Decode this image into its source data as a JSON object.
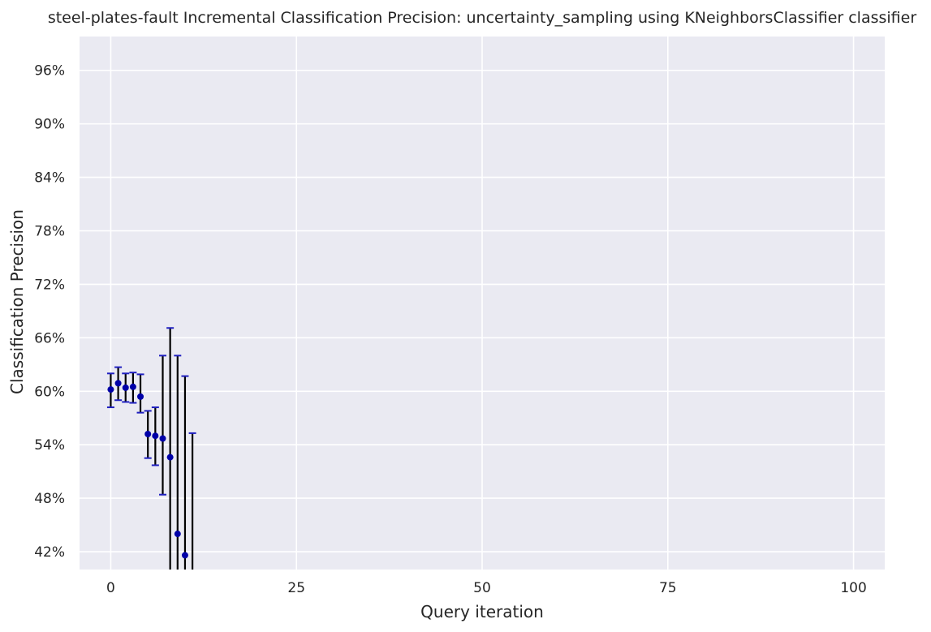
{
  "chart_data": {
    "type": "scatter",
    "title": "steel-plates-fault Incremental Classification Precision: uncertainty_sampling using KNeighborsClassifier classifier",
    "xlabel": "Query iteration",
    "ylabel": "Classification Precision",
    "xlim": [
      -4.2,
      104.2
    ],
    "ylim": [
      0.4,
      0.998
    ],
    "xticks": [
      0,
      25,
      50,
      75,
      100
    ],
    "xtick_labels": [
      "0",
      "25",
      "50",
      "75",
      "100"
    ],
    "yticks": [
      0.42,
      0.48,
      0.54,
      0.6,
      0.66,
      0.72,
      0.78,
      0.84,
      0.9,
      0.96
    ],
    "ytick_labels": [
      "42%",
      "48%",
      "54%",
      "60%",
      "66%",
      "72%",
      "78%",
      "84%",
      "90%",
      "96%"
    ],
    "grid": true,
    "background_color": "#eaeaf2",
    "grid_color": "#ffffff",
    "marker_color": "#0000a8",
    "errorbar_color": "#000000",
    "cap_color": "#1f1fc0",
    "series": [
      {
        "x": [
          0,
          1,
          2,
          3,
          4,
          5,
          6,
          7,
          8,
          9,
          10,
          11
        ],
        "y": [
          0.602,
          0.609,
          0.604,
          0.605,
          0.594,
          0.552,
          0.55,
          0.547,
          0.526,
          0.44,
          0.416,
          0.384
        ],
        "err_low": [
          0.582,
          0.59,
          0.588,
          0.587,
          0.576,
          0.525,
          0.517,
          0.484,
          0.384,
          0.3,
          0.3,
          0.3
        ],
        "err_high": [
          0.62,
          0.627,
          0.62,
          0.621,
          0.619,
          0.578,
          0.582,
          0.64,
          0.671,
          0.64,
          0.617,
          0.553
        ]
      }
    ]
  }
}
